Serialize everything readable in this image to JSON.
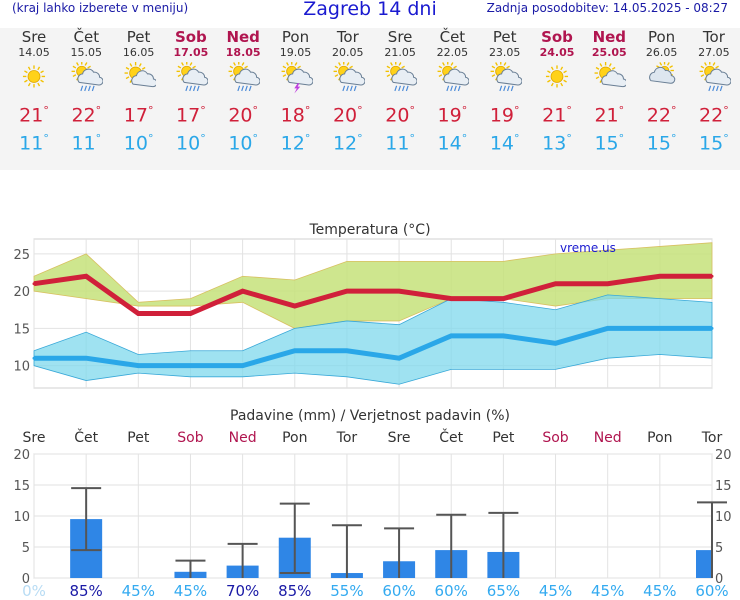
{
  "header": {
    "left_text": "(kraj lahko izberete v meniju)",
    "title": "Zagreb 14 dni",
    "updated": "Zadnja posodobitev: 14.05.2025 - 08:27"
  },
  "days": [
    {
      "name": "Sre",
      "date": "14.05",
      "weekend": false,
      "icon": "sun-icon",
      "tmax": 21,
      "tmin": 11
    },
    {
      "name": "Čet",
      "date": "15.05",
      "weekend": false,
      "icon": "sun-cloud-rain-icon",
      "tmax": 22,
      "tmin": 11
    },
    {
      "name": "Pet",
      "date": "16.05",
      "weekend": false,
      "icon": "sun-cloud-icon",
      "tmax": 17,
      "tmin": 10
    },
    {
      "name": "Sob",
      "date": "17.05",
      "weekend": true,
      "icon": "sun-cloud-rain-icon",
      "tmax": 17,
      "tmin": 10
    },
    {
      "name": "Ned",
      "date": "18.05",
      "weekend": true,
      "icon": "sun-cloud-rain-icon",
      "tmax": 20,
      "tmin": 10
    },
    {
      "name": "Pon",
      "date": "19.05",
      "weekend": false,
      "icon": "thunderstorm-icon",
      "tmax": 18,
      "tmin": 12
    },
    {
      "name": "Tor",
      "date": "20.05",
      "weekend": false,
      "icon": "sun-cloud-rain-icon",
      "tmax": 20,
      "tmin": 12
    },
    {
      "name": "Sre",
      "date": "21.05",
      "weekend": false,
      "icon": "sun-cloud-rain-icon",
      "tmax": 20,
      "tmin": 11
    },
    {
      "name": "Čet",
      "date": "22.05",
      "weekend": false,
      "icon": "sun-cloud-rain-icon",
      "tmax": 19,
      "tmin": 14
    },
    {
      "name": "Pet",
      "date": "23.05",
      "weekend": false,
      "icon": "sun-cloud-rain-icon",
      "tmax": 19,
      "tmin": 14
    },
    {
      "name": "Sob",
      "date": "24.05",
      "weekend": true,
      "icon": "sun-icon",
      "tmax": 21,
      "tmin": 13
    },
    {
      "name": "Ned",
      "date": "25.05",
      "weekend": true,
      "icon": "sun-cloud-icon",
      "tmax": 21,
      "tmin": 15
    },
    {
      "name": "Pon",
      "date": "26.05",
      "weekend": false,
      "icon": "cloud-sun-icon",
      "tmax": 22,
      "tmin": 15
    },
    {
      "name": "Tor",
      "date": "27.05",
      "weekend": false,
      "icon": "sun-cloud-rain-icon",
      "tmax": 22,
      "tmin": 15
    }
  ],
  "deg": "°",
  "colors": {
    "max": "#d0203a",
    "min": "#2aa7e8",
    "weekend": "#b0154f",
    "bar": "#2f86e6",
    "prob_dark": "#1a1aa6",
    "prob_light": "#33aaf0"
  },
  "chart_data": [
    {
      "type": "line",
      "title": "Temperatura (°C)",
      "watermark": "vreme.us",
      "x": [
        "Sre",
        "Čet",
        "Pet",
        "Sob",
        "Ned",
        "Pon",
        "Tor",
        "Sre",
        "Čet",
        "Pet",
        "Sob",
        "Ned",
        "Pon",
        "Tor"
      ],
      "ylim": [
        7,
        27
      ],
      "yticks": [
        10,
        15,
        20,
        25
      ],
      "series": [
        {
          "values": [
            21,
            22,
            17,
            17,
            20,
            18,
            20,
            20,
            19,
            19,
            21,
            21,
            22,
            22
          ],
          "band_low": [
            20,
            19,
            18,
            18,
            18.5,
            15,
            16,
            16,
            19,
            19,
            18,
            19,
            19,
            19
          ],
          "band_high": [
            22,
            25,
            18.5,
            19,
            22,
            21.5,
            24,
            24,
            24,
            24,
            25,
            25.5,
            26,
            26.5
          ]
        },
        {
          "values": [
            11,
            11,
            10,
            10,
            10,
            12,
            12,
            11,
            14,
            14,
            13,
            15,
            15,
            15
          ],
          "band_low": [
            10,
            8,
            9,
            8.5,
            8.5,
            9,
            8.5,
            7.5,
            9.5,
            9.5,
            9.5,
            11,
            11.5,
            11
          ],
          "band_high": [
            12,
            14.5,
            11.5,
            12,
            12,
            15,
            16,
            15.5,
            19,
            18.5,
            17.5,
            19.5,
            19,
            18.5
          ]
        }
      ]
    },
    {
      "type": "bar",
      "title": "Padavine (mm) / Verjetnost padavin (%)",
      "categories": [
        "Sre",
        "Čet",
        "Pet",
        "Sob",
        "Ned",
        "Pon",
        "Tor",
        "Sre",
        "Čet",
        "Pet",
        "Sob",
        "Ned",
        "Pon",
        "Tor"
      ],
      "ylim": [
        0,
        20
      ],
      "yticks": [
        0,
        5,
        10,
        15,
        20
      ],
      "values": [
        0,
        9.5,
        0,
        1,
        2,
        6.5,
        0.8,
        2.7,
        4.5,
        4.2,
        0,
        0,
        0,
        4.5
      ],
      "error_low": [
        null,
        4.5,
        null,
        0,
        0,
        0.8,
        0,
        0,
        0,
        0,
        null,
        null,
        null,
        0
      ],
      "error_high": [
        null,
        14.5,
        null,
        2.8,
        5.5,
        12,
        8.5,
        8,
        10.2,
        10.5,
        null,
        null,
        null,
        12.2
      ],
      "probabilities": [
        "0%",
        "85%",
        "45%",
        "45%",
        "70%",
        "85%",
        "55%",
        "60%",
        "60%",
        "65%",
        "45%",
        "45%",
        "45%",
        "60%"
      ]
    }
  ]
}
